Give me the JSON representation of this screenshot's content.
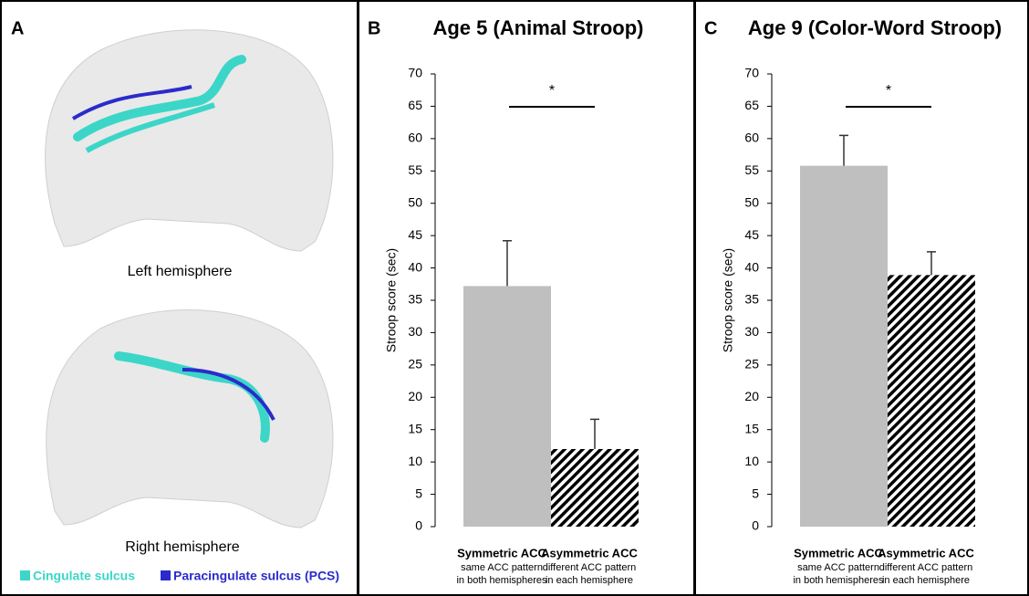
{
  "panel_a": {
    "label": "A",
    "captions": [
      "Left hemisphere",
      "Right hemisphere"
    ],
    "legend": [
      {
        "name": "Cingulate sulcus",
        "color": "#3cd6c8"
      },
      {
        "name": "Paracingulate sulcus (PCS)",
        "color": "#2b2bcc"
      }
    ]
  },
  "chart_data": [
    {
      "type": "bar",
      "panel_label": "B",
      "title": "Age 5 (Animal Stroop)",
      "y_label": "Stroop score (sec)",
      "categories": [
        "Symmetric ACC",
        "Asymmetric ACC"
      ],
      "category_descriptions": [
        [
          "same ACC pattern",
          "in both hemispheres"
        ],
        [
          "different ACC pattern",
          "in each hemisphere"
        ]
      ],
      "values": [
        37.2,
        12
      ],
      "errors": [
        7.0,
        4.6
      ],
      "bar_colors": [
        "#bfbfbf",
        "#000000"
      ],
      "bar_patterns": [
        "solid",
        "hatched"
      ],
      "annotation": "*",
      "ylim": [
        0,
        70
      ],
      "yticks": [
        0,
        5,
        10,
        15,
        20,
        25,
        30,
        35,
        40,
        45,
        50,
        55,
        60,
        65,
        70
      ]
    },
    {
      "type": "bar",
      "panel_label": "C",
      "title": "Age 9 (Color-Word Stroop)",
      "y_label": "Stroop score (sec)",
      "categories": [
        "Symmetric ACC",
        "Asymmetric ACC"
      ],
      "category_descriptions": [
        [
          "same ACC pattern",
          "in both hemispheres"
        ],
        [
          "different ACC pattern",
          "in each hemisphere"
        ]
      ],
      "values": [
        55.8,
        38.9
      ],
      "errors": [
        4.7,
        3.6
      ],
      "bar_colors": [
        "#bfbfbf",
        "#000000"
      ],
      "bar_patterns": [
        "solid",
        "hatched"
      ],
      "annotation": "*",
      "ylim": [
        0,
        70
      ],
      "yticks": [
        0,
        5,
        10,
        15,
        20,
        25,
        30,
        35,
        40,
        45,
        50,
        55,
        60,
        65,
        70
      ]
    }
  ]
}
